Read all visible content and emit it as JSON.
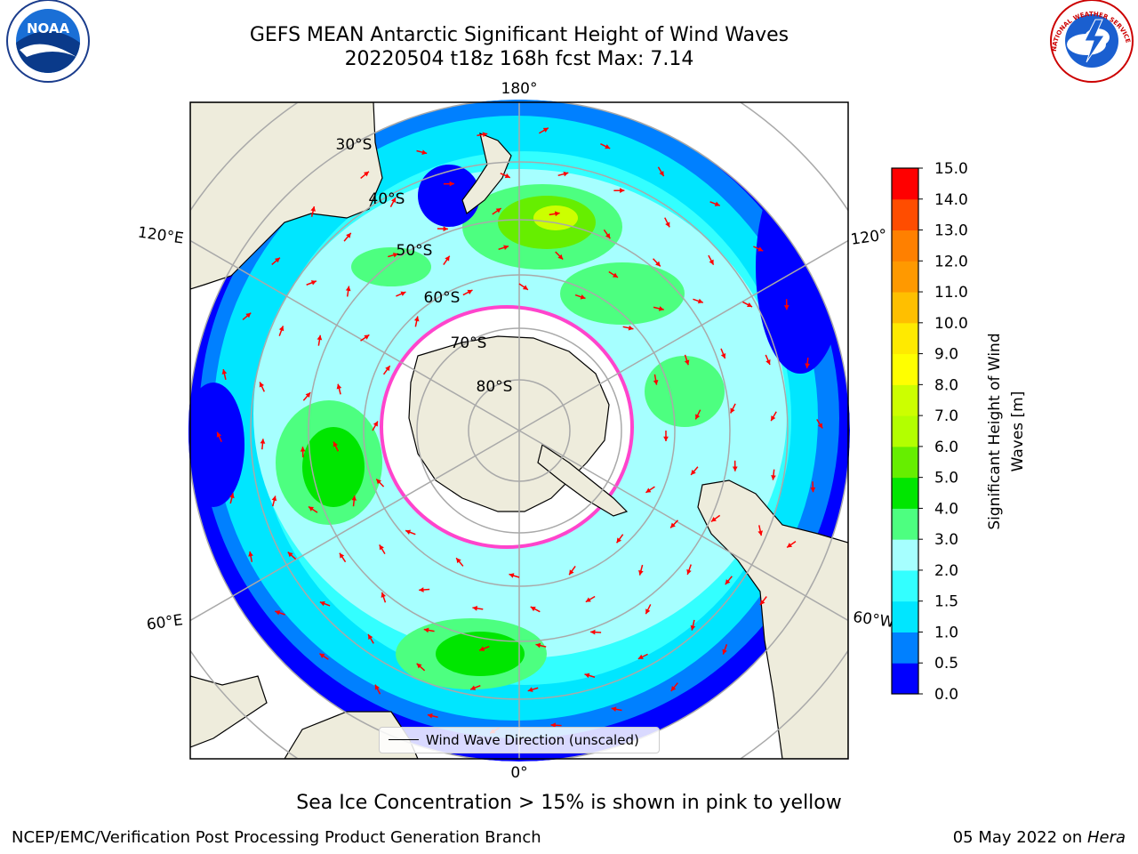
{
  "header": {
    "title_line1": "GEFS MEAN Antarctic Significant Height of Wind Waves",
    "title_line2": "20220504 t18z 168h fcst   Max: 7.14"
  },
  "logos": {
    "left": "NOAA",
    "right": "NATIONAL WEATHER SERVICE"
  },
  "map": {
    "longitude_labels": {
      "top": "180°",
      "bottom": "0°",
      "left_upper": "120°E",
      "left_lower": "60°E",
      "right_upper": "120°",
      "right_lower": "60°W"
    },
    "latitude_labels": [
      "30°S",
      "40°S",
      "50°S",
      "60°S",
      "70°S",
      "80°S"
    ],
    "legend_label": "Wind Wave Direction (unscaled)",
    "colors": {
      "land": "#eeecdc",
      "ice_edge": "#ff44cc",
      "arrow": "#ff0000"
    }
  },
  "colorbar": {
    "label": "Significant Height of Wind Waves [m]",
    "ticks": [
      "0.0",
      "0.5",
      "1.0",
      "1.5",
      "2.0",
      "3.0",
      "4.0",
      "5.0",
      "6.0",
      "7.0",
      "8.0",
      "9.0",
      "10.0",
      "11.0",
      "12.0",
      "13.0",
      "14.0",
      "15.0"
    ],
    "colors": [
      "#0000ff",
      "#0080ff",
      "#00e6ff",
      "#33ffff",
      "#a6ffff",
      "#4dff80",
      "#00e600",
      "#66ee00",
      "#b3ff00",
      "#ccff00",
      "#ffff00",
      "#ffea00",
      "#ffbf00",
      "#ff9900",
      "#ff8000",
      "#ff4d00",
      "#ff0000"
    ]
  },
  "caption": "Sea Ice Concentration > 15% is shown in pink to yellow",
  "footer": {
    "left": "NCEP/EMC/Verification Post Processing Product Generation Branch",
    "date": "05 May 2022 on ",
    "machine": "Hera"
  }
}
